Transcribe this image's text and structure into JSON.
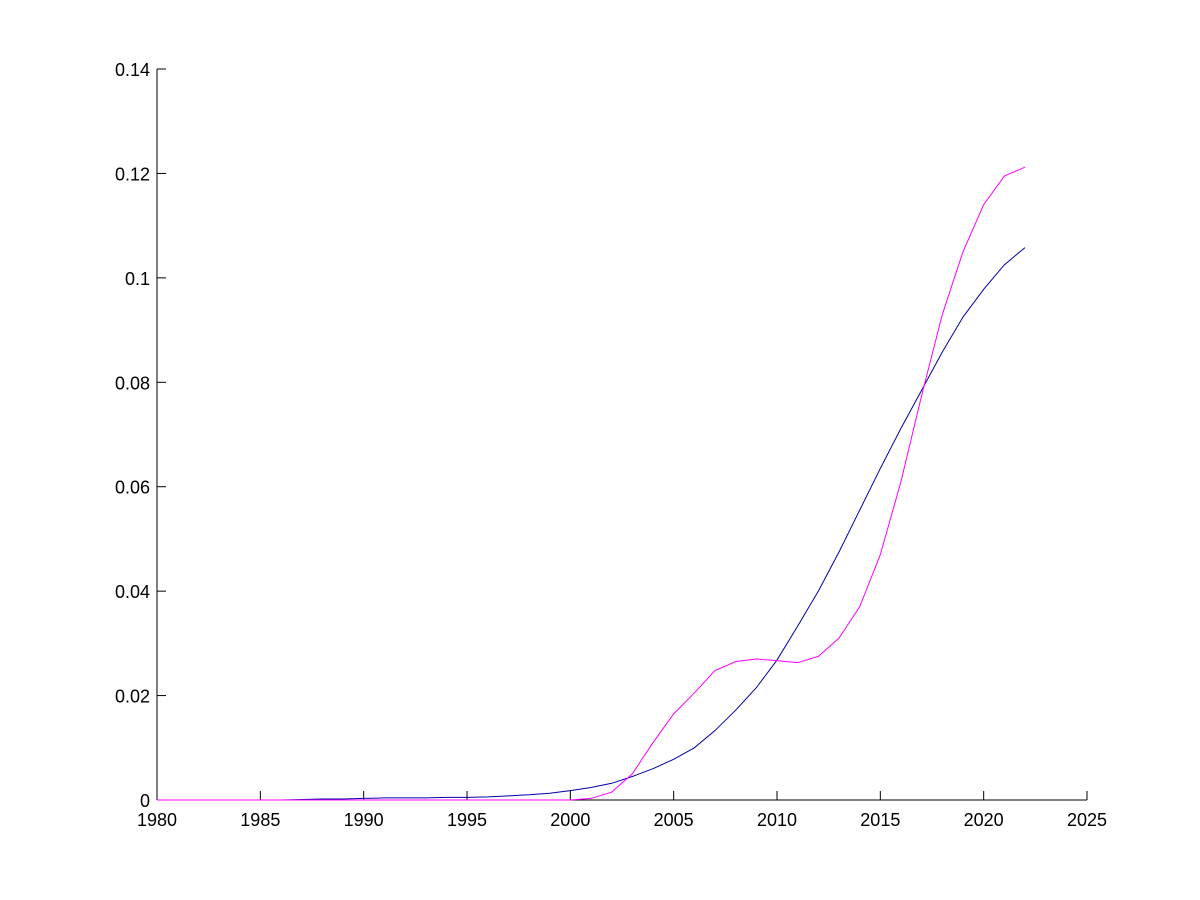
{
  "chart_data": {
    "type": "line",
    "x": [
      1980,
      1981,
      1982,
      1983,
      1984,
      1985,
      1986,
      1987,
      1988,
      1989,
      1990,
      1991,
      1992,
      1993,
      1994,
      1995,
      1996,
      1997,
      1998,
      1999,
      2000,
      2001,
      2002,
      2003,
      2004,
      2005,
      2006,
      2007,
      2008,
      2009,
      2010,
      2011,
      2012,
      2013,
      2014,
      2015,
      2016,
      2017,
      2018,
      2019,
      2020,
      2021,
      2022
    ],
    "series": [
      {
        "color": "#0000aa",
        "values": [
          0,
          0,
          0,
          0,
          0,
          0,
          0,
          0.0001,
          0.0002,
          0.0002,
          0.0003,
          0.0004,
          0.0004,
          0.0004,
          0.0005,
          0.0005,
          0.0006,
          0.0008,
          0.001,
          0.0013,
          0.0018,
          0.0024,
          0.0032,
          0.0045,
          0.006,
          0.0078,
          0.01,
          0.0133,
          0.0172,
          0.0215,
          0.0268,
          0.0333,
          0.04,
          0.0475,
          0.0555,
          0.0635,
          0.0712,
          0.0785,
          0.0858,
          0.0925,
          0.0978,
          0.1025,
          0.1058
        ]
      },
      {
        "color": "#ff00ff",
        "values": [
          0,
          0,
          0,
          0,
          0,
          0,
          0,
          0,
          0,
          0,
          0,
          0,
          0,
          0,
          0,
          0,
          0,
          0,
          0,
          0,
          0,
          0.0003,
          0.0015,
          0.005,
          0.011,
          0.0165,
          0.0205,
          0.0248,
          0.0265,
          0.027,
          0.0267,
          0.0263,
          0.0275,
          0.031,
          0.037,
          0.047,
          0.061,
          0.0775,
          0.093,
          0.105,
          0.114,
          0.1195,
          0.1212
        ]
      }
    ],
    "xlim": [
      1980,
      2025
    ],
    "xticks": [
      1980,
      1985,
      1990,
      1995,
      2000,
      2005,
      2010,
      2015,
      2020,
      2025
    ],
    "ylim": [
      0,
      0.14
    ],
    "yticks": [
      0,
      0.02,
      0.04,
      0.06,
      0.08,
      0.1,
      0.12,
      0.14
    ]
  }
}
